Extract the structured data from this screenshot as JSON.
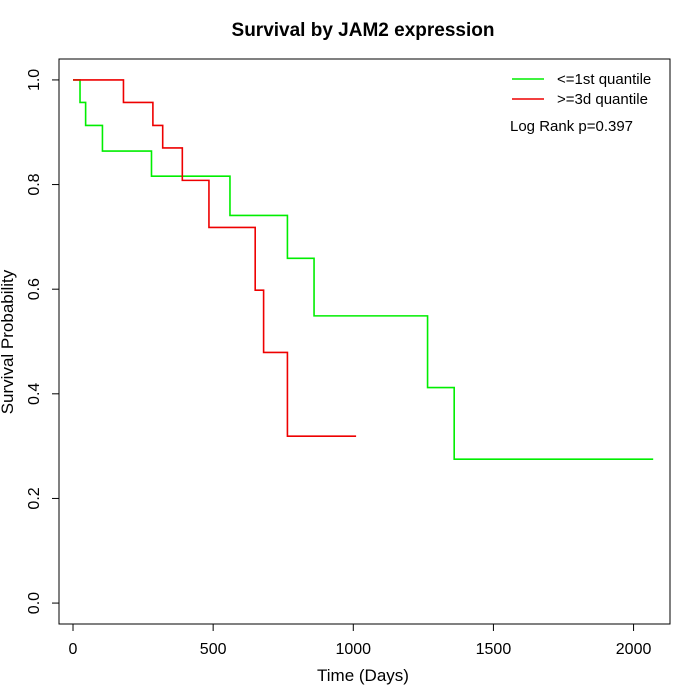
{
  "chart_data": {
    "type": "line",
    "title": "Survival by JAM2 expression",
    "xlabel": "Time (Days)",
    "ylabel": "Survival Probability",
    "xlim": [
      -50,
      2130
    ],
    "ylim": [
      -0.04,
      1.04
    ],
    "xticks": [
      0,
      500,
      1000,
      1500,
      2000
    ],
    "yticks": [
      0.0,
      0.2,
      0.4,
      0.6,
      0.8,
      1.0
    ],
    "xtick_labels": [
      "0",
      "500",
      "1000",
      "1500",
      "2000"
    ],
    "ytick_labels": [
      "0.0",
      "0.2",
      "0.4",
      "0.6",
      "0.8",
      "1.0"
    ],
    "grid": false,
    "legend_position": "top-right",
    "annotation": "Log Rank p=0.397",
    "series": [
      {
        "name": "<=1st quantile",
        "color": "#00ee00",
        "step": true,
        "points": [
          [
            0,
            1.0
          ],
          [
            25,
            0.957
          ],
          [
            45,
            0.913
          ],
          [
            105,
            0.864
          ],
          [
            280,
            0.816
          ],
          [
            560,
            0.741
          ],
          [
            765,
            0.659
          ],
          [
            860,
            0.549
          ],
          [
            1265,
            0.412
          ],
          [
            1360,
            0.275
          ],
          [
            2070,
            0.275
          ]
        ]
      },
      {
        "name": ">=3d quantile",
        "color": "#ee0000",
        "step": true,
        "points": [
          [
            0,
            1.0
          ],
          [
            180,
            0.957
          ],
          [
            285,
            0.913
          ],
          [
            320,
            0.87
          ],
          [
            390,
            0.808
          ],
          [
            485,
            0.718
          ],
          [
            650,
            0.598
          ],
          [
            680,
            0.479
          ],
          [
            765,
            0.319
          ],
          [
            1010,
            0.319
          ]
        ]
      }
    ]
  }
}
